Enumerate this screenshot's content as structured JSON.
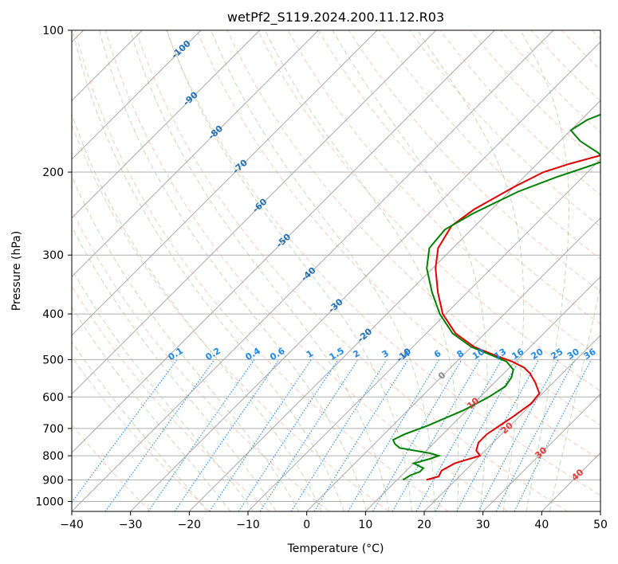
{
  "chart_data": {
    "type": "skew-t",
    "title": "wetPf2_S119.2024.200.11.12.R03",
    "xlabel": "Temperature (°C)",
    "ylabel": "Pressure (hPa)",
    "xlim": [
      -40,
      50
    ],
    "ylim": [
      1050,
      100
    ],
    "y_scale": "log",
    "grid": true,
    "x_ticks": [
      -40,
      -30,
      -20,
      -10,
      0,
      10,
      20,
      30,
      40,
      50
    ],
    "y_ticks": [
      100,
      200,
      300,
      400,
      500,
      600,
      700,
      800,
      900,
      1000
    ],
    "isotherm_labels": [
      {
        "label": "-100",
        "t": -100
      },
      {
        "label": "-90",
        "t": -90
      },
      {
        "label": "-80",
        "t": -80
      },
      {
        "label": "-70",
        "t": -70
      },
      {
        "label": "-60",
        "t": -60
      },
      {
        "label": "-50",
        "t": -50
      },
      {
        "label": "-40",
        "t": -40
      },
      {
        "label": "-30",
        "t": -30
      },
      {
        "label": "-20",
        "t": -20
      },
      {
        "label": "-10",
        "t": -10
      },
      {
        "label": "0",
        "t": 0
      },
      {
        "label": "10",
        "t": 10
      },
      {
        "label": "20",
        "t": 20
      },
      {
        "label": "30",
        "t": 30
      },
      {
        "label": "40",
        "t": 40
      }
    ],
    "mixing_ratio_labels": [
      "0.1",
      "0.2",
      "0.4",
      "0.6",
      "1",
      "1.5",
      "2",
      "3",
      "4",
      "6",
      "8",
      "10",
      "13",
      "16",
      "20",
      "25",
      "30",
      "36"
    ],
    "series": [
      {
        "color": "#e00000",
        "points": [
          [
            900,
            15.0
          ],
          [
            885,
            16.5
          ],
          [
            860,
            16.0
          ],
          [
            830,
            17.0
          ],
          [
            810,
            19.0
          ],
          [
            800,
            20.0
          ],
          [
            780,
            18.5
          ],
          [
            750,
            17.5
          ],
          [
            720,
            17.5
          ],
          [
            700,
            18.0
          ],
          [
            660,
            19.0
          ],
          [
            620,
            19.8
          ],
          [
            590,
            19.5
          ],
          [
            560,
            17.0
          ],
          [
            535,
            14.5
          ],
          [
            520,
            12.5
          ],
          [
            505,
            9.5
          ],
          [
            490,
            5.5
          ],
          [
            470,
            0.5
          ],
          [
            440,
            -5.0
          ],
          [
            400,
            -10.5
          ],
          [
            360,
            -15.0
          ],
          [
            320,
            -19.5
          ],
          [
            290,
            -22.5
          ],
          [
            260,
            -24.0
          ],
          [
            240,
            -23.0
          ],
          [
            215,
            -20.0
          ],
          [
            200,
            -17.5
          ],
          [
            192,
            -14.5
          ],
          [
            185,
            -11.0
          ],
          [
            176,
            -5.5
          ],
          [
            168,
            0.0
          ],
          [
            162,
            3.0
          ],
          [
            150,
            6.0
          ],
          [
            135,
            9.5
          ],
          [
            125,
            12.0
          ],
          [
            115,
            15.0
          ],
          [
            105,
            18.5
          ],
          [
            100,
            20.5
          ]
        ]
      },
      {
        "color": "#008000",
        "points": [
          [
            900,
            11.0
          ],
          [
            880,
            11.5
          ],
          [
            865,
            12.5
          ],
          [
            850,
            12.5
          ],
          [
            830,
            10.0
          ],
          [
            812,
            12.0
          ],
          [
            800,
            13.0
          ],
          [
            790,
            11.0
          ],
          [
            770,
            5.0
          ],
          [
            755,
            3.5
          ],
          [
            740,
            2.5
          ],
          [
            720,
            3.5
          ],
          [
            690,
            6.0
          ],
          [
            640,
            9.5
          ],
          [
            600,
            11.5
          ],
          [
            570,
            12.5
          ],
          [
            545,
            12.0
          ],
          [
            525,
            11.0
          ],
          [
            505,
            8.5
          ],
          [
            490,
            5.0
          ],
          [
            470,
            0.0
          ],
          [
            440,
            -5.5
          ],
          [
            400,
            -11.0
          ],
          [
            360,
            -16.0
          ],
          [
            320,
            -21.0
          ],
          [
            290,
            -24.0
          ],
          [
            265,
            -24.5
          ],
          [
            245,
            -22.5
          ],
          [
            220,
            -18.5
          ],
          [
            205,
            -14.5
          ],
          [
            195,
            -11.0
          ],
          [
            189,
            -9.0
          ],
          [
            182,
            -11.5
          ],
          [
            172,
            -16.5
          ],
          [
            163,
            -20.0
          ],
          [
            155,
            -19.0
          ],
          [
            145,
            -15.5
          ],
          [
            130,
            -14.0
          ],
          [
            120,
            -12.5
          ],
          [
            112,
            -9.0
          ],
          [
            105,
            -5.0
          ],
          [
            100,
            -2.0
          ]
        ]
      }
    ]
  }
}
